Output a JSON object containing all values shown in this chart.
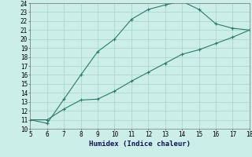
{
  "xlabel": "Humidex (Indice chaleur)",
  "background_color": "#cceee8",
  "grid_color": "#aad8d0",
  "line_color": "#2a7a6a",
  "xlim": [
    5,
    18
  ],
  "ylim": [
    10,
    24
  ],
  "xticks": [
    5,
    6,
    7,
    8,
    9,
    10,
    11,
    12,
    13,
    14,
    15,
    16,
    17,
    18
  ],
  "yticks": [
    10,
    11,
    12,
    13,
    14,
    15,
    16,
    17,
    18,
    19,
    20,
    21,
    22,
    23,
    24
  ],
  "series1_x": [
    5,
    6,
    7,
    8,
    9,
    10,
    11,
    12,
    13,
    14,
    15,
    16,
    17,
    18
  ],
  "series1_y": [
    11.0,
    10.6,
    13.3,
    16.0,
    18.6,
    20.0,
    22.2,
    23.3,
    23.8,
    24.2,
    23.3,
    21.7,
    21.2,
    21.0
  ],
  "series2_x": [
    5,
    6,
    7,
    8,
    9,
    10,
    11,
    12,
    13,
    14,
    15,
    16,
    17,
    18
  ],
  "series2_y": [
    11.0,
    11.0,
    12.2,
    13.2,
    13.3,
    14.2,
    15.3,
    16.3,
    17.3,
    18.3,
    18.8,
    19.5,
    20.2,
    21.0
  ]
}
